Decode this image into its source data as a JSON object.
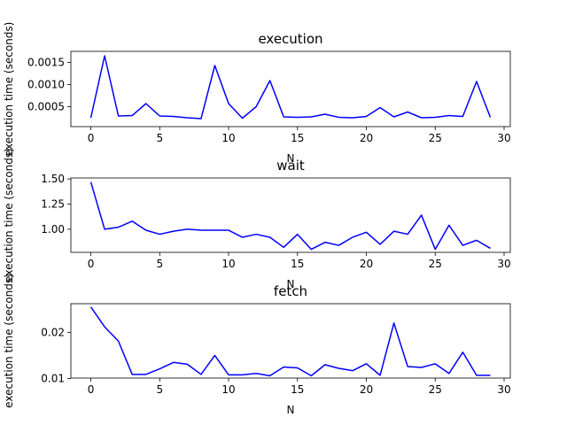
{
  "chart_data": [
    {
      "type": "line",
      "title": "execution",
      "xlabel": "N",
      "ylabel": "execution time (seconds)",
      "xlim": [
        -1.45,
        30.45
      ],
      "ylim": [
        5e-05,
        0.00175
      ],
      "xticks": [
        0,
        5,
        10,
        15,
        20,
        25,
        30
      ],
      "yticks": [
        0.0005,
        0.001,
        0.0015
      ],
      "ytick_labels": [
        "0.0005",
        "0.0010",
        "0.0015"
      ],
      "series": [
        {
          "color": "#0000ff",
          "x": [
            0,
            1,
            2,
            3,
            4,
            5,
            6,
            7,
            8,
            9,
            10,
            11,
            12,
            13,
            14,
            15,
            16,
            17,
            18,
            19,
            20,
            21,
            22,
            23,
            24,
            25,
            26,
            27,
            28,
            29
          ],
          "y": [
            0.00025,
            0.00165,
            0.00029,
            0.0003,
            0.00057,
            0.00029,
            0.00028,
            0.00025,
            0.00023,
            0.00143,
            0.00057,
            0.00024,
            0.0005,
            0.00109,
            0.00027,
            0.00026,
            0.00027,
            0.00033,
            0.00026,
            0.00025,
            0.00028,
            0.00048,
            0.00027,
            0.00038,
            0.00025,
            0.00026,
            0.0003,
            0.00028,
            0.00107,
            0.00026
          ]
        }
      ]
    },
    {
      "type": "line",
      "title": "wait",
      "xlabel": "N",
      "ylabel": "execution time (seconds)",
      "xlim": [
        -1.45,
        30.45
      ],
      "ylim": [
        0.77,
        1.51
      ],
      "xticks": [
        0,
        5,
        10,
        15,
        20,
        25,
        30
      ],
      "yticks": [
        1.0,
        1.25,
        1.5
      ],
      "ytick_labels": [
        "1.00",
        "1.25",
        "1.50"
      ],
      "series": [
        {
          "color": "#0000ff",
          "x": [
            0,
            1,
            2,
            3,
            4,
            5,
            6,
            7,
            8,
            9,
            10,
            11,
            12,
            13,
            14,
            15,
            16,
            17,
            18,
            19,
            20,
            21,
            22,
            23,
            24,
            25,
            26,
            27,
            28,
            29
          ],
          "y": [
            1.47,
            1.0,
            1.02,
            1.08,
            0.99,
            0.95,
            0.98,
            1.0,
            0.99,
            0.99,
            0.99,
            0.92,
            0.95,
            0.92,
            0.82,
            0.95,
            0.8,
            0.87,
            0.84,
            0.92,
            0.97,
            0.85,
            0.98,
            0.95,
            1.14,
            0.8,
            1.04,
            0.84,
            0.89,
            0.81
          ]
        }
      ]
    },
    {
      "type": "line",
      "title": "fetch",
      "xlabel": "N",
      "ylabel": "execution time (seconds)",
      "xlim": [
        -1.45,
        30.45
      ],
      "ylim": [
        0.0101,
        0.0262
      ],
      "xticks": [
        0,
        5,
        10,
        15,
        20,
        25,
        30
      ],
      "yticks": [
        0.01,
        0.02
      ],
      "ytick_labels": [
        "0.01",
        "0.02"
      ],
      "series": [
        {
          "color": "#0000ff",
          "x": [
            0,
            1,
            2,
            3,
            4,
            5,
            6,
            7,
            8,
            9,
            10,
            11,
            12,
            13,
            14,
            15,
            16,
            17,
            18,
            19,
            20,
            21,
            22,
            23,
            24,
            25,
            26,
            27,
            28,
            29
          ],
          "y": [
            0.0255,
            0.0212,
            0.0181,
            0.0109,
            0.0109,
            0.0121,
            0.0135,
            0.0131,
            0.0109,
            0.015,
            0.0108,
            0.0108,
            0.0111,
            0.0106,
            0.0125,
            0.0123,
            0.0106,
            0.013,
            0.0122,
            0.0117,
            0.0132,
            0.0107,
            0.022,
            0.0126,
            0.0124,
            0.0132,
            0.0111,
            0.0157,
            0.0107,
            0.0107
          ]
        }
      ]
    }
  ]
}
